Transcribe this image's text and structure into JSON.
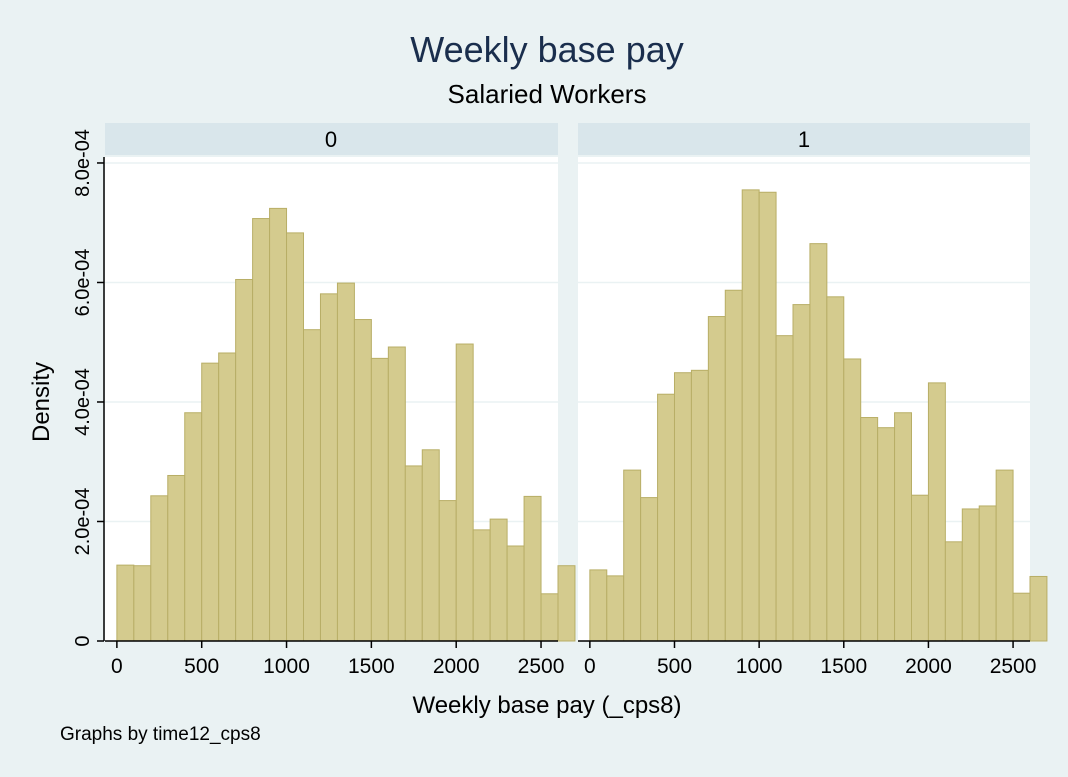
{
  "colors": {
    "background": "#eaf2f3",
    "plot_background": "#ffffff",
    "strip_background": "#d9e6eb",
    "bar_fill": "#d4cb8e",
    "bar_edge": "#b8ae66",
    "grid": "#eaf2f3",
    "axis": "#000000",
    "title": "#1a2e4d"
  },
  "chart_data": {
    "type": "bar",
    "title": "Weekly base pay",
    "subtitle": "Salaried Workers",
    "xlabel": "Weekly base pay (_cps8)",
    "ylabel": "Density",
    "note": "Graphs by time12_cps8",
    "xlim": [
      -70,
      2600
    ],
    "ylim": [
      0,
      0.00081
    ],
    "xticks": [
      0,
      500,
      1000,
      1500,
      2000,
      2500
    ],
    "xtick_labels": [
      "0",
      "500",
      "1000",
      "1500",
      "2000",
      "2500"
    ],
    "yticks": [
      0,
      0.0002,
      0.0004,
      0.0006,
      0.0008
    ],
    "ytick_labels": [
      "0",
      "2.0e-04",
      "4.0e-04",
      "6.0e-04",
      "8.0e-04"
    ],
    "grid": true,
    "bin_start": 0,
    "bin_width": 100,
    "panels": [
      {
        "label": "0",
        "values": [
          0.000127,
          0.000126,
          0.000243,
          0.000277,
          0.000382,
          0.000465,
          0.000482,
          0.000605,
          0.000707,
          0.000724,
          0.000683,
          0.000521,
          0.000581,
          0.000599,
          0.000538,
          0.000473,
          0.000492,
          0.000293,
          0.00032,
          0.000235,
          0.000497,
          0.000186,
          0.000204,
          0.000159,
          0.000242,
          7.9e-05,
          0.000126
        ]
      },
      {
        "label": "1",
        "values": [
          0.000119,
          0.000109,
          0.000286,
          0.00024,
          0.000413,
          0.000449,
          0.000453,
          0.000543,
          0.000587,
          0.000755,
          0.000751,
          0.000511,
          0.000563,
          0.000665,
          0.000576,
          0.000472,
          0.000374,
          0.000357,
          0.000382,
          0.000244,
          0.000432,
          0.000166,
          0.000221,
          0.000226,
          0.000286,
          8e-05,
          0.000108
        ]
      }
    ]
  }
}
